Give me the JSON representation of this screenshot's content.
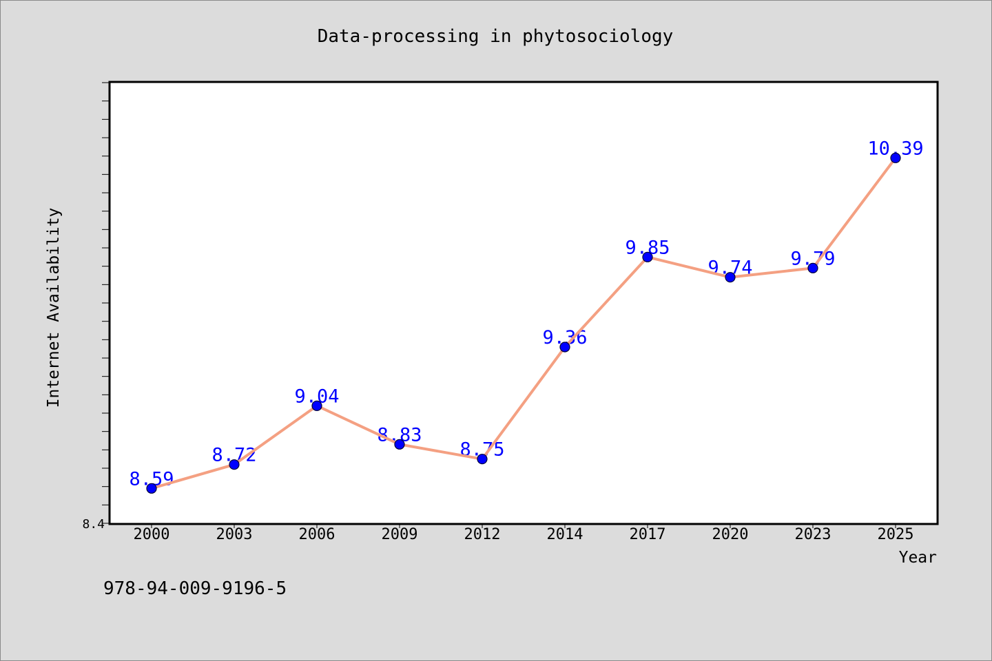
{
  "colors": {
    "figure_background": "#dcdcdc",
    "plot_background": "#ffffff",
    "data_label": "#0000ff"
  },
  "chart_data": {
    "type": "line",
    "title": "Data-processing in phytosociology",
    "xlabel": "Year",
    "ylabel": "Internet Availability",
    "categories": [
      "2000",
      "2003",
      "2006",
      "2009",
      "2012",
      "2014",
      "2017",
      "2020",
      "2023",
      "2025"
    ],
    "series": [
      {
        "values": [
          8.59,
          8.72,
          9.04,
          8.83,
          8.75,
          9.36,
          9.85,
          9.74,
          9.79,
          10.39
        ],
        "line_color": "#f4a082",
        "marker_color": "#0000ff"
      }
    ],
    "ylim": [
      8.4,
      10.8
    ],
    "y_tick_labels": [
      "8.4"
    ],
    "grid": false,
    "legend": "none",
    "annotations": [
      "978-94-009-9196-5"
    ]
  }
}
